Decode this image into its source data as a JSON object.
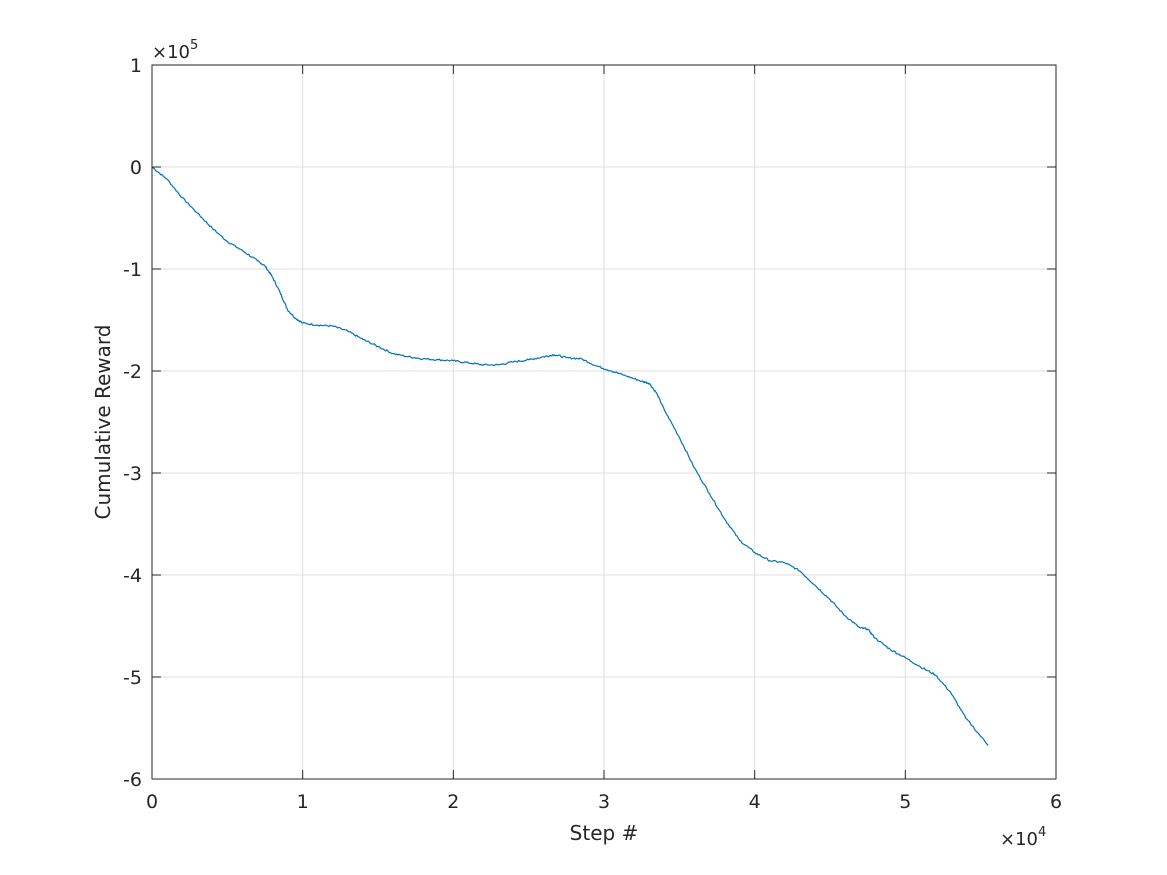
{
  "chart_data": {
    "type": "line",
    "title": "",
    "xlabel": "Step #",
    "ylabel": "Cumulative Reward",
    "xlim": [
      0,
      60000
    ],
    "ylim": [
      -600000,
      100000
    ],
    "x_exponent_label": "10",
    "x_exponent_power": "4",
    "y_exponent_label": "10",
    "y_exponent_power": "5",
    "x_ticks": [
      0,
      10000,
      20000,
      30000,
      40000,
      50000,
      60000
    ],
    "x_tick_labels": [
      "0",
      "1",
      "2",
      "3",
      "4",
      "5",
      "6"
    ],
    "y_ticks": [
      100000,
      0,
      -100000,
      -200000,
      -300000,
      -400000,
      -500000,
      -600000
    ],
    "y_tick_labels": [
      "1",
      "0",
      "-1",
      "-2",
      "-3",
      "-4",
      "-5",
      "-6"
    ],
    "grid": true,
    "legend": "none",
    "series": [
      {
        "color": "#0072bd",
        "x": [
          0,
          1000,
          2000,
          3000,
          4000,
          5000,
          6000,
          7000,
          7500,
          8000,
          8500,
          9000,
          9500,
          10000,
          11000,
          12000,
          13000,
          14000,
          15000,
          16000,
          17000,
          18000,
          19000,
          20000,
          21000,
          22000,
          23000,
          24000,
          25000,
          26000,
          26700,
          27500,
          28500,
          29500,
          30500,
          31500,
          32500,
          33000,
          33500,
          34000,
          35000,
          36000,
          37000,
          38000,
          39000,
          40000,
          41000,
          42000,
          43000,
          44000,
          45000,
          46000,
          47000,
          47500,
          48000,
          49000,
          50000,
          51000,
          52000,
          53000,
          54000,
          55500
        ],
        "y": [
          0,
          -12000,
          -30000,
          -45000,
          -60000,
          -73000,
          -82000,
          -92000,
          -97000,
          -108000,
          -123000,
          -140000,
          -148000,
          -153000,
          -155000,
          -156000,
          -161000,
          -169000,
          -176000,
          -183000,
          -186000,
          -188000,
          -189000,
          -190000,
          -192000,
          -194000,
          -194000,
          -191000,
          -189000,
          -186000,
          -184000,
          -187000,
          -188000,
          -195000,
          -200000,
          -205000,
          -210000,
          -212000,
          -222000,
          -238000,
          -265000,
          -295000,
          -320000,
          -345000,
          -366000,
          -378000,
          -386000,
          -388000,
          -396000,
          -410000,
          -424000,
          -440000,
          -452000,
          -453000,
          -462000,
          -473000,
          -481000,
          -490000,
          -498000,
          -515000,
          -540000,
          -567000
        ]
      }
    ]
  }
}
